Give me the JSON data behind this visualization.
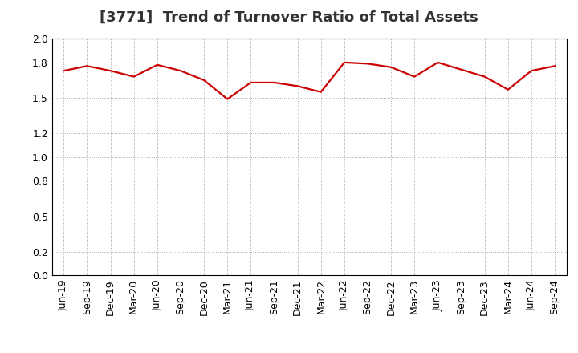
{
  "title": "[3771]  Trend of Turnover Ratio of Total Assets",
  "x_labels": [
    "Jun-19",
    "Sep-19",
    "Dec-19",
    "Mar-20",
    "Jun-20",
    "Sep-20",
    "Dec-20",
    "Mar-21",
    "Jun-21",
    "Sep-21",
    "Dec-21",
    "Mar-22",
    "Jun-22",
    "Sep-22",
    "Dec-22",
    "Mar-23",
    "Jun-23",
    "Sep-23",
    "Dec-23",
    "Mar-24",
    "Jun-24",
    "Sep-24"
  ],
  "values": [
    1.73,
    1.77,
    1.73,
    1.68,
    1.78,
    1.73,
    1.65,
    1.49,
    1.63,
    1.63,
    1.6,
    1.55,
    1.8,
    1.79,
    1.76,
    1.68,
    1.8,
    1.74,
    1.68,
    1.57,
    1.73,
    1.77
  ],
  "ylim": [
    0.0,
    2.0
  ],
  "yticks": [
    0.0,
    0.2,
    0.5,
    0.8,
    1.0,
    1.2,
    1.5,
    1.8,
    2.0
  ],
  "line_color": "#cc0000",
  "line_width": 1.6,
  "background_color": "#ffffff",
  "grid_color": "#aaaaaa",
  "title_fontsize": 13,
  "tick_fontsize": 9,
  "title_color": "#333333"
}
